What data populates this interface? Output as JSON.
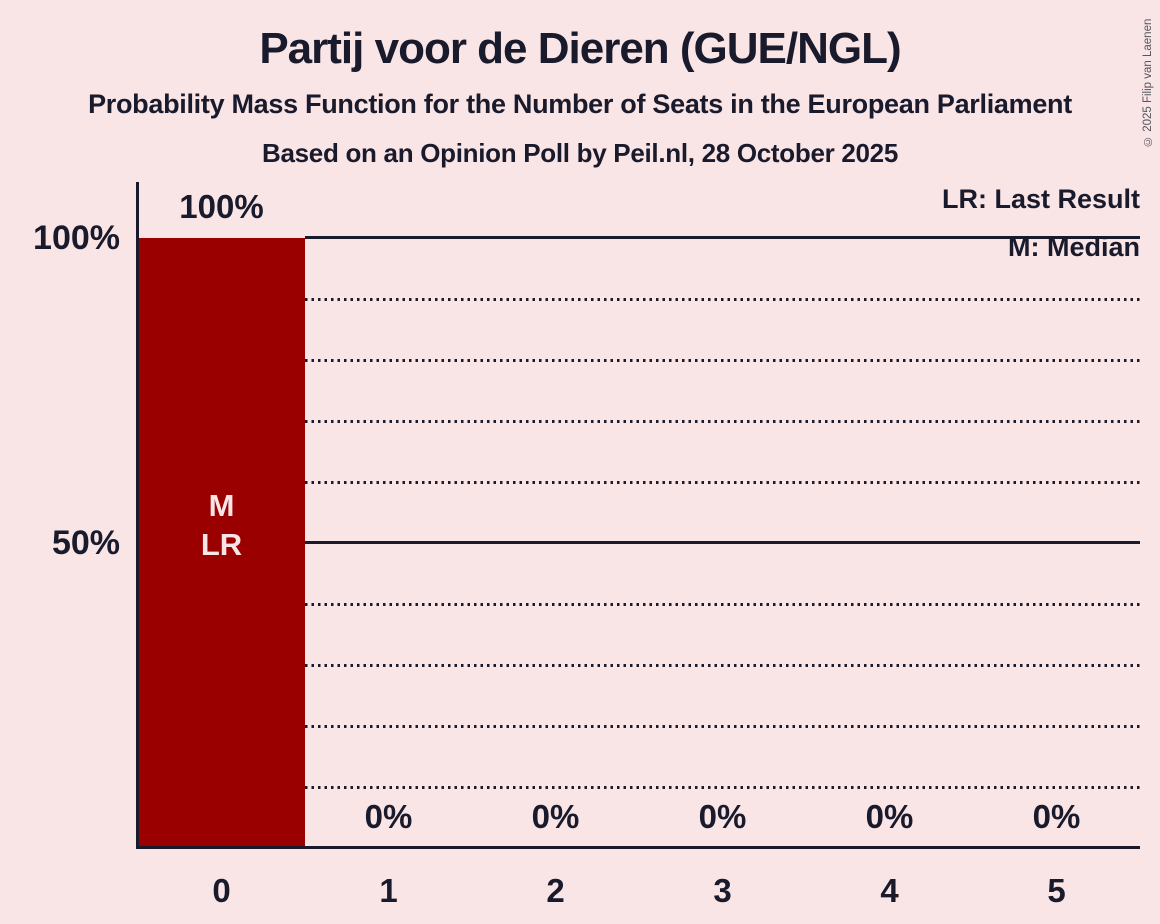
{
  "header": {
    "title": "Partij voor de Dieren (GUE/NGL)",
    "subtitle": "Probability Mass Function for the Number of Seats in the European Parliament",
    "poll_line": "Based on an Opinion Poll by Peil.nl, 28 October 2025"
  },
  "copyright": "© 2025 Filip van Laenen",
  "legend": {
    "last_result": "LR: Last Result",
    "median": "M: Median"
  },
  "colors": {
    "background": "#f9e4e6",
    "bar": "#9a0000",
    "text": "#191a2b",
    "copyright_text": "#55555f"
  },
  "chart_data": {
    "type": "bar",
    "title": "Partij voor de Dieren (GUE/NGL)",
    "categories": [
      "0",
      "1",
      "2",
      "3",
      "4",
      "5"
    ],
    "values": [
      100,
      0,
      0,
      0,
      0,
      0
    ],
    "value_labels": [
      "100%",
      "0%",
      "0%",
      "0%",
      "0%",
      "0%"
    ],
    "xlabel": "",
    "ylabel": "",
    "ylim": [
      0,
      100
    ],
    "y_axis_tick_labels": [
      "100%",
      "50%"
    ],
    "gridlines": {
      "solid_percent": [
        100,
        50
      ],
      "dotted_percent": [
        90,
        80,
        70,
        60,
        40,
        30,
        20,
        10
      ]
    },
    "annotations": {
      "bar_category": "0",
      "labels": [
        "M",
        "LR"
      ]
    },
    "legend_position": "top-right",
    "grid": "horizontal-only"
  }
}
